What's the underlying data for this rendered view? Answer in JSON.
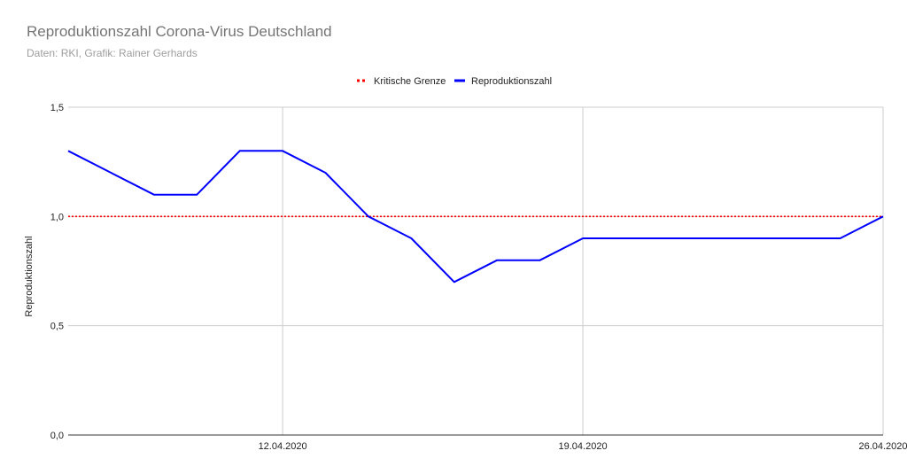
{
  "chart_data": {
    "type": "line",
    "title": "Reproduktionszahl Corona-Virus Deutschland",
    "subtitle": "Daten: RKI, Grafik: Rainer Gerhards",
    "ylabel": "Reproduktionszahl",
    "xlabel": "",
    "ylim": [
      0,
      1.5
    ],
    "y_ticks": [
      "0,0",
      "0,5",
      "1,0",
      "1,5"
    ],
    "y_tick_values": [
      0,
      0.5,
      1.0,
      1.5
    ],
    "x_tick_labels": [
      "12.04.2020",
      "19.04.2020",
      "26.04.2020"
    ],
    "x_tick_dates": [
      "2020-04-12",
      "2020-04-19",
      "2020-04-26"
    ],
    "x_start": "2020-04-07",
    "x_end": "2020-04-26",
    "grid": true,
    "legend_position": "top-center",
    "x": [
      "2020-04-07",
      "2020-04-08",
      "2020-04-09",
      "2020-04-10",
      "2020-04-11",
      "2020-04-12",
      "2020-04-13",
      "2020-04-14",
      "2020-04-15",
      "2020-04-16",
      "2020-04-17",
      "2020-04-18",
      "2020-04-19",
      "2020-04-20",
      "2020-04-21",
      "2020-04-22",
      "2020-04-23",
      "2020-04-24",
      "2020-04-25",
      "2020-04-26"
    ],
    "series": [
      {
        "name": "Kritische Grenze",
        "color": "#ff0000",
        "style": "dotted",
        "values": [
          1.0,
          1.0,
          1.0,
          1.0,
          1.0,
          1.0,
          1.0,
          1.0,
          1.0,
          1.0,
          1.0,
          1.0,
          1.0,
          1.0,
          1.0,
          1.0,
          1.0,
          1.0,
          1.0,
          1.0
        ]
      },
      {
        "name": "Reproduktionszahl",
        "color": "#0000ff",
        "style": "solid",
        "values": [
          1.3,
          1.2,
          1.1,
          1.1,
          1.3,
          1.3,
          1.2,
          1.0,
          0.9,
          0.7,
          0.8,
          0.8,
          0.9,
          0.9,
          0.9,
          0.9,
          0.9,
          0.9,
          0.9,
          1.0
        ]
      }
    ]
  }
}
